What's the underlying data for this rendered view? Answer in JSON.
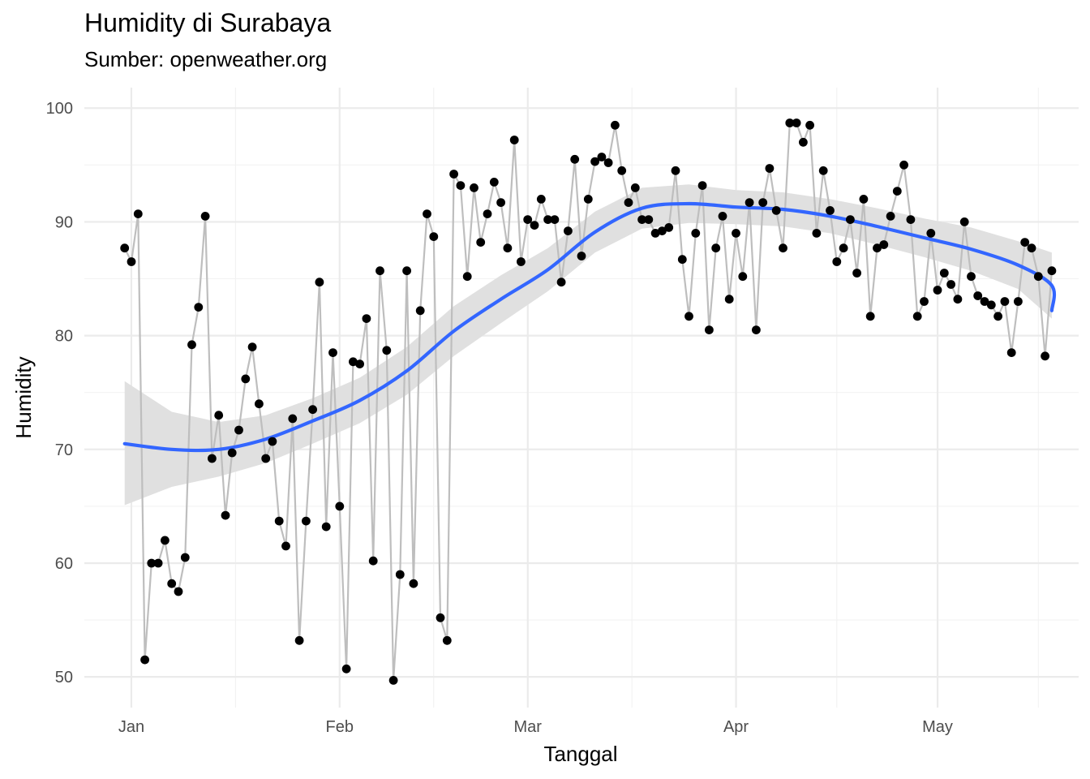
{
  "chart_data": {
    "type": "line",
    "title": "Humidity di Surabaya",
    "subtitle": "Sumber: openweather.org",
    "xlabel": "Tanggal",
    "ylabel": "Humidity",
    "x_ticks": [
      {
        "label": "Jan",
        "date": "2021-01-01"
      },
      {
        "label": "Feb",
        "date": "2021-02-01"
      },
      {
        "label": "Mar",
        "date": "2021-03-01"
      },
      {
        "label": "Apr",
        "date": "2021-04-01"
      },
      {
        "label": "May",
        "date": "2021-05-01"
      }
    ],
    "y_ticks": [
      50,
      60,
      70,
      80,
      90,
      100
    ],
    "xlim": [
      "2020-12-25",
      "2021-05-22"
    ],
    "ylim": [
      47.3,
      101.8
    ],
    "grid": true,
    "series": [
      {
        "kind": "observations (points + line)",
        "line_color": "#bebebe",
        "point_color": "#000000",
        "start_date": "2020-12-31",
        "values": [
          87.7,
          86.5,
          90.7,
          51.5,
          60,
          60,
          62,
          58.2,
          57.5,
          60.5,
          79.2,
          82.5,
          90.5,
          69.2,
          73,
          64.2,
          69.7,
          71.7,
          76.2,
          79,
          74,
          69.2,
          70.7,
          63.7,
          61.5,
          72.7,
          53.2,
          63.7,
          73.5,
          84.7,
          63.2,
          78.5,
          65,
          50.7,
          77.7,
          77.5,
          81.5,
          60.2,
          85.7,
          78.7,
          49.7,
          59,
          85.7,
          58.2,
          82.2,
          90.7,
          88.7,
          55.2,
          53.2,
          94.2,
          93.2,
          85.2,
          93,
          88.2,
          90.7,
          93.5,
          91.7,
          87.7,
          97.2,
          86.5,
          90.2,
          89.7,
          92,
          90.2,
          90.2,
          84.7,
          89.2,
          95.5,
          87,
          92,
          95.3,
          95.7,
          95.2,
          98.5,
          94.5,
          91.7,
          93,
          90.2,
          90.2,
          89,
          89.2,
          89.5,
          94.5,
          86.7,
          81.7,
          89,
          93.2,
          80.5,
          87.7,
          90.5,
          83.2,
          89,
          85.2,
          91.7,
          80.5,
          91.7,
          94.7,
          91,
          87.7,
          98.7,
          98.7,
          97,
          98.5,
          89,
          94.5,
          91,
          86.5,
          87.7,
          90.2,
          85.5,
          92,
          81.7,
          87.7,
          88,
          90.5,
          92.7,
          95,
          90.2,
          81.7,
          83,
          89,
          84,
          85.5,
          84.5,
          83.2,
          90,
          85.2,
          83.5,
          83,
          82.7,
          81.7,
          83,
          78.5,
          83,
          88.2,
          87.7,
          85.2,
          78.2,
          85.7
        ]
      },
      {
        "kind": "loess smooth with confidence band",
        "line_color": "#3366ff",
        "band_color": "#e0e0e0",
        "start_date": "2020-12-31",
        "step_days": 7,
        "fit": [
          70.5,
          70,
          70,
          70.9,
          72.5,
          74.3,
          76.9,
          80.4,
          83.2,
          85.8,
          89.1,
          91.2,
          91.6,
          91.3,
          91.1,
          90.5,
          89.6,
          88.6,
          87.6,
          86.2,
          84.4,
          82.2
        ],
        "lower": [
          65.1,
          66.7,
          67.6,
          68.8,
          70.5,
          72.3,
          74.8,
          78.2,
          81.1,
          83.9,
          87.3,
          89.4,
          89.9,
          89.8,
          89.6,
          89,
          88,
          86.9,
          85.7,
          84.1,
          81.5,
          76.7
        ],
        "upper": [
          76,
          73.3,
          72.4,
          73,
          74.5,
          76.3,
          79,
          82.6,
          85.3,
          87.7,
          90.9,
          93,
          93.3,
          92.8,
          92.6,
          92,
          91.2,
          90.3,
          89.5,
          88.3,
          87.3,
          87.6
        ]
      }
    ]
  }
}
